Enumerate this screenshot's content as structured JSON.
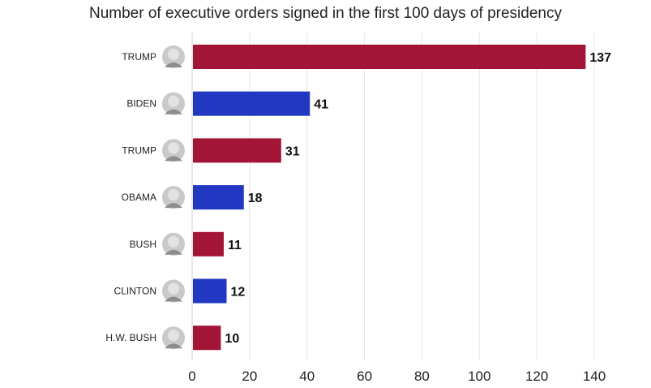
{
  "chart_data": {
    "type": "bar",
    "orientation": "horizontal",
    "title": "Number of executive orders signed in the first 100 days of presidency",
    "xlabel": "",
    "ylabel": "",
    "categories": [
      "TRUMP",
      "BIDEN",
      "TRUMP",
      "OBAMA",
      "BUSH",
      "CLINTON",
      "H.W. BUSH"
    ],
    "values": [
      137,
      41,
      31,
      18,
      11,
      12,
      10
    ],
    "bar_colors": [
      "#a31536",
      "#2238c2",
      "#a31536",
      "#2238c2",
      "#a31536",
      "#2238c2",
      "#a31536"
    ],
    "xlim": [
      0,
      140
    ],
    "xticks": [
      0,
      20,
      40,
      60,
      80,
      100,
      120,
      140
    ],
    "grid": "vertical",
    "data_labels": true
  }
}
